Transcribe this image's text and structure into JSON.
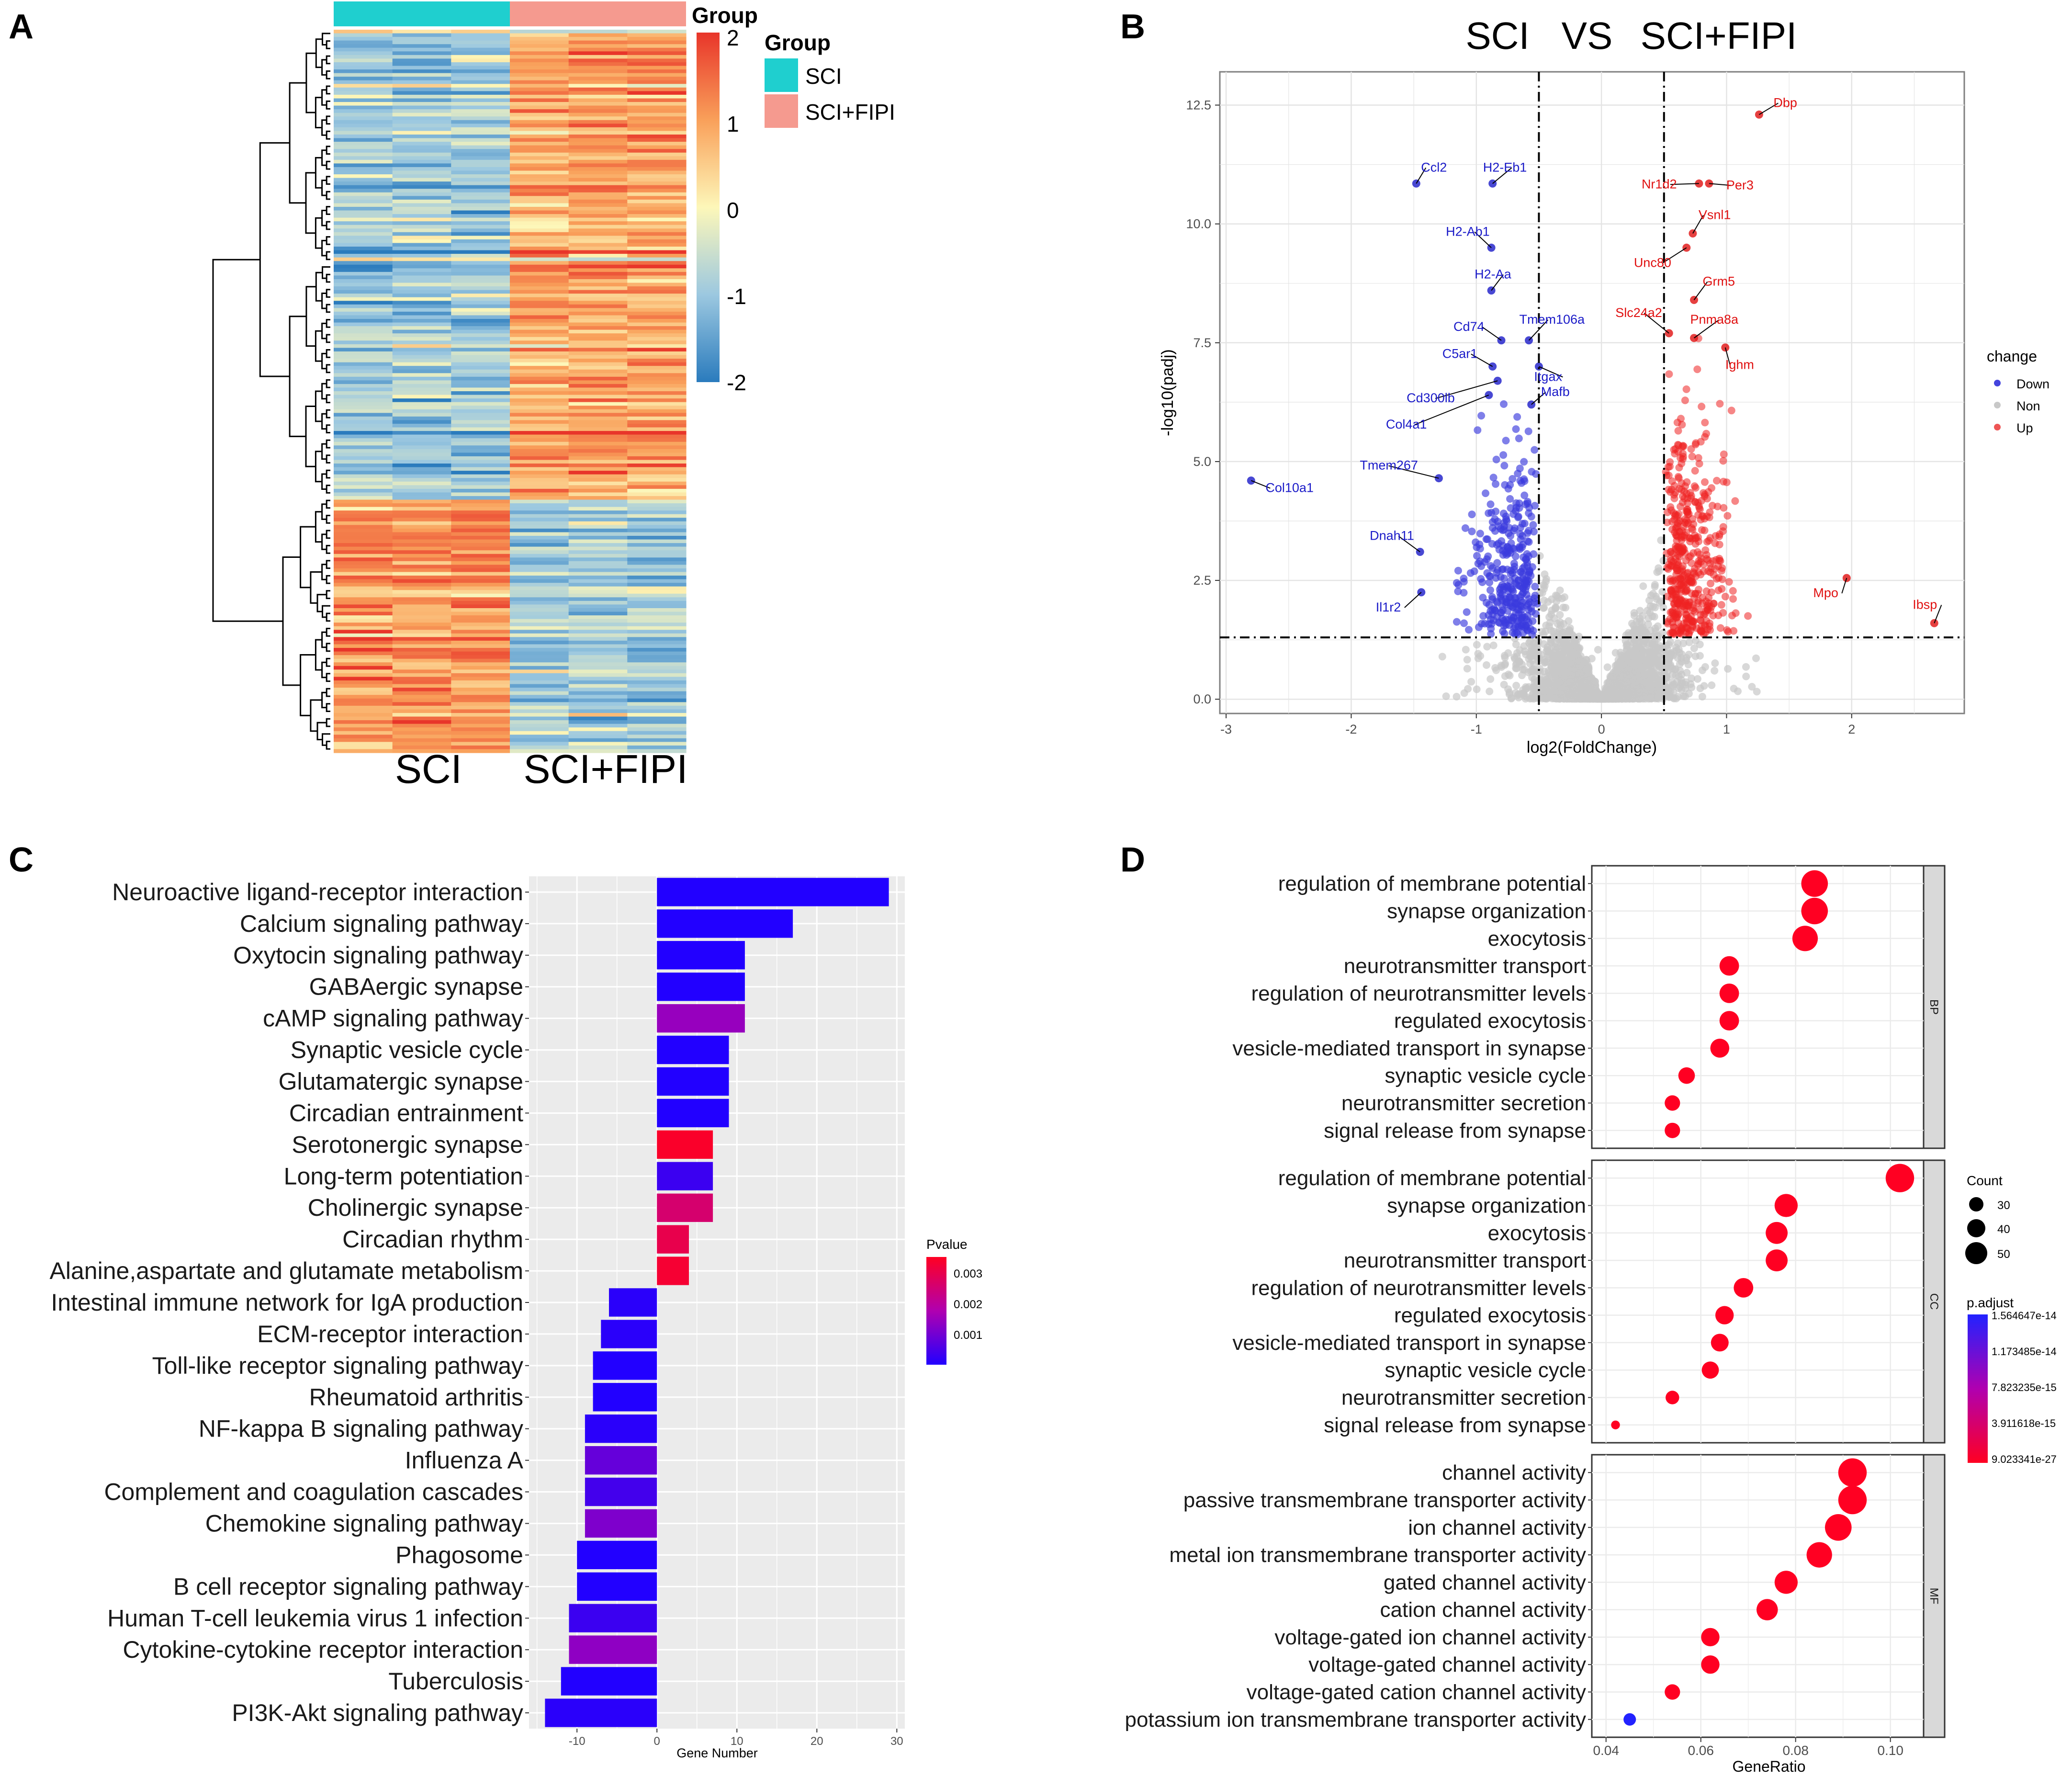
{
  "panels": {
    "A": {
      "letter": "A",
      "legend_title": "Group",
      "legend_items": [
        {
          "label": "SCI",
          "color": "#1fcfcf"
        },
        {
          "label": "SCI+FIPI",
          "color": "#f59a8f"
        }
      ],
      "colorbar_ticks": [
        "2",
        "1",
        "0",
        "-1",
        "-2"
      ],
      "group_header_label": "Group",
      "column_labels": [
        "SCI",
        "SCI+FIPI"
      ],
      "colors": {
        "high": "#e8352a",
        "mid": "#fdf7b9",
        "low": "#2a7bbd"
      }
    },
    "B": {
      "letter": "B",
      "title_left": "SCI",
      "title_mid": "VS",
      "title_right": "SCI+FIPI",
      "xlabel": "log2(FoldChange)",
      "ylabel": "-log10(padj)",
      "xticks": [
        "-3",
        "-2",
        "-1",
        "0",
        "1",
        "2"
      ],
      "yticks": [
        "0.0",
        "2.5",
        "5.0",
        "7.5",
        "10.0",
        "12.5"
      ],
      "legend_title": "change",
      "legend_items": [
        {
          "label": "Down",
          "color": "#4444dd"
        },
        {
          "label": "Non",
          "color": "#c8c8c8"
        },
        {
          "label": "Up",
          "color": "#ee3333"
        }
      ]
    },
    "C": {
      "letter": "C",
      "xlabel": "Gene Number",
      "xticks": [
        "-10",
        "0",
        "10",
        "20",
        "30"
      ],
      "legend_title": "Pvalue",
      "legend_ticks": [
        "0.003",
        "0.002",
        "0.001"
      ]
    },
    "D": {
      "letter": "D",
      "xlabel": "GeneRatio",
      "xticks": [
        "0.04",
        "0.06",
        "0.08",
        "0.10"
      ],
      "facets": [
        "BP",
        "CC",
        "MF"
      ],
      "count_title": "Count",
      "count_items": [
        "30",
        "40",
        "50"
      ],
      "padj_title": "p.adjust",
      "padj_ticks": [
        "1.564647e-14",
        "1.173485e-14",
        "7.823235e-15",
        "3.911618e-15",
        "9.023341e-27"
      ]
    }
  },
  "chart_data": [
    {
      "type": "heatmap",
      "panel": "A",
      "columns": [
        "SCI",
        "SCI",
        "SCI",
        "SCI+FIPI",
        "SCI+FIPI",
        "SCI+FIPI"
      ],
      "row_blocks": [
        {
          "rows": 130,
          "sci_level": -0.9,
          "fipi_level": 0.9
        },
        {
          "rows": 70,
          "sci_level": 1.1,
          "fipi_level": -0.9
        }
      ],
      "range": [
        -2,
        2
      ]
    },
    {
      "type": "scatter",
      "panel": "B",
      "title": "SCI VS SCI+FIPI",
      "xlabel": "log2(FoldChange)",
      "ylabel": "-log10(padj)",
      "xlim": [
        -3.05,
        2.9
      ],
      "ylim": [
        -0.3,
        13.2
      ],
      "thresholds": {
        "x": [
          -0.5,
          0.5
        ],
        "y": 1.3
      },
      "labeled_points": [
        {
          "gene": "Dbp",
          "x": 1.26,
          "y": 12.3,
          "change": "Up"
        },
        {
          "gene": "Nr1d2",
          "x": 0.78,
          "y": 10.85,
          "change": "Up"
        },
        {
          "gene": "Per3",
          "x": 0.86,
          "y": 10.85,
          "change": "Up"
        },
        {
          "gene": "Vsnl1",
          "x": 0.73,
          "y": 9.8,
          "change": "Up"
        },
        {
          "gene": "Unc80",
          "x": 0.68,
          "y": 9.5,
          "change": "Up"
        },
        {
          "gene": "Grm5",
          "x": 0.74,
          "y": 8.4,
          "change": "Up"
        },
        {
          "gene": "Slc24a2",
          "x": 0.54,
          "y": 7.7,
          "change": "Up"
        },
        {
          "gene": "Pnma8a",
          "x": 0.74,
          "y": 7.6,
          "change": "Up"
        },
        {
          "gene": "Ighm",
          "x": 0.99,
          "y": 7.4,
          "change": "Up"
        },
        {
          "gene": "Mpo",
          "x": 1.96,
          "y": 2.55,
          "change": "Up"
        },
        {
          "gene": "Ibsp",
          "x": 2.66,
          "y": 1.6,
          "change": "Up"
        },
        {
          "gene": "Ccl2",
          "x": -1.48,
          "y": 10.85,
          "change": "Down"
        },
        {
          "gene": "H2-Eb1",
          "x": -0.87,
          "y": 10.85,
          "change": "Down"
        },
        {
          "gene": "H2-Ab1",
          "x": -0.88,
          "y": 9.5,
          "change": "Down"
        },
        {
          "gene": "H2-Aa",
          "x": -0.88,
          "y": 8.6,
          "change": "Down"
        },
        {
          "gene": "Cd74",
          "x": -0.8,
          "y": 7.55,
          "change": "Down"
        },
        {
          "gene": "Tmem106a",
          "x": -0.58,
          "y": 7.55,
          "change": "Down"
        },
        {
          "gene": "C5ar1",
          "x": -0.87,
          "y": 7.0,
          "change": "Down"
        },
        {
          "gene": "Itgax",
          "x": -0.5,
          "y": 7.0,
          "change": "Down"
        },
        {
          "gene": "Cd300lb",
          "x": -0.83,
          "y": 6.7,
          "change": "Down"
        },
        {
          "gene": "Mafb",
          "x": -0.56,
          "y": 6.2,
          "change": "Down"
        },
        {
          "gene": "Col4a1",
          "x": -0.9,
          "y": 6.4,
          "change": "Down"
        },
        {
          "gene": "Tmem267",
          "x": -1.3,
          "y": 4.65,
          "change": "Down"
        },
        {
          "gene": "Col10a1",
          "x": -2.8,
          "y": 4.6,
          "change": "Down"
        },
        {
          "gene": "Dnah11",
          "x": -1.45,
          "y": 3.1,
          "change": "Down"
        },
        {
          "gene": "Il1r2",
          "x": -1.44,
          "y": 2.25,
          "change": "Down"
        }
      ]
    },
    {
      "type": "bar",
      "panel": "C",
      "orientation": "horizontal",
      "xlabel": "Gene Number",
      "xlim": [
        -16,
        31
      ],
      "categories": [
        "Neuroactive ligand-receptor interaction",
        "Calcium signaling pathway",
        "Oxytocin signaling pathway",
        "GABAergic synapse",
        "cAMP signaling pathway",
        "Synaptic vesicle cycle",
        "Glutamatergic synapse",
        "Circadian entrainment",
        "Serotonergic synapse",
        "Long-term potentiation",
        "Cholinergic synapse",
        "Circadian rhythm",
        "Alanine,aspartate and glutamate metabolism",
        "Intestinal immune network for IgA production",
        "ECM-receptor interaction",
        "Toll-like receptor signaling pathway",
        "Rheumatoid arthritis",
        "NF-kappa B signaling pathway",
        "Influenza A",
        "Complement and coagulation cascades",
        "Chemokine signaling pathway",
        "Phagosome",
        "B cell receptor signaling pathway",
        "Human T-cell leukemia virus 1 infection",
        "Cytokine-cytokine receptor interaction",
        "Tuberculosis",
        "PI3K-Akt signaling pathway"
      ],
      "values": [
        29,
        17,
        11,
        11,
        11,
        9,
        9,
        9,
        7,
        7,
        7,
        4,
        4,
        -6,
        -7,
        -8,
        -8,
        -9,
        -9,
        -9,
        -9,
        -10,
        -10,
        -11,
        -11,
        -12,
        -14
      ],
      "pvalues": [
        0.0001,
        0.0001,
        0.0001,
        0.0001,
        0.0015,
        0.0001,
        0.0001,
        0.0001,
        0.0034,
        0.0004,
        0.0026,
        0.003,
        0.0033,
        0.0002,
        0.0002,
        0.0001,
        0.0001,
        0.0002,
        0.0009,
        0.0005,
        0.0012,
        0.0001,
        0.0001,
        0.0004,
        0.0014,
        0.0001,
        0.0002
      ],
      "legend_title": "Pvalue"
    },
    {
      "type": "scatter",
      "panel": "D",
      "subtype": "dotplot",
      "xlabel": "GeneRatio",
      "xlim": [
        0.037,
        0.107
      ],
      "facets": [
        {
          "name": "BP",
          "terms": [
            "regulation of membrane potential",
            "synapse organization",
            "exocytosis",
            "neurotransmitter transport",
            "regulation of neurotransmitter levels",
            "regulated exocytosis",
            "vesicle-mediated transport in synapse",
            "synaptic vesicle cycle",
            "neurotransmitter secretion",
            "signal release from synapse"
          ],
          "gene_ratio": [
            0.084,
            0.084,
            0.082,
            0.066,
            0.066,
            0.066,
            0.064,
            0.057,
            0.054,
            0.054
          ],
          "count": [
            52,
            52,
            50,
            40,
            40,
            40,
            39,
            35,
            33,
            33
          ],
          "p_adjust": [
            1e-26,
            1e-26,
            1e-26,
            1e-26,
            1e-26,
            1e-26,
            1e-26,
            1e-26,
            1e-26,
            1e-26
          ]
        },
        {
          "name": "CC",
          "terms": [
            "regulation of membrane potential",
            "synapse organization",
            "exocytosis",
            "neurotransmitter transport",
            "regulation of neurotransmitter levels",
            "regulated exocytosis",
            "vesicle-mediated transport in synapse",
            "synaptic vesicle cycle",
            "neurotransmitter secretion",
            "signal release from synapse"
          ],
          "gene_ratio": [
            0.102,
            0.078,
            0.076,
            0.076,
            0.069,
            0.065,
            0.064,
            0.062,
            0.054,
            0.042
          ],
          "count": [
            55,
            46,
            44,
            44,
            40,
            38,
            37,
            36,
            30,
            22
          ],
          "p_adjust": [
            1e-26,
            1e-26,
            1e-26,
            1e-26,
            1e-26,
            1e-26,
            1e-26,
            1e-26,
            1e-26,
            1e-26
          ]
        },
        {
          "name": "MF",
          "terms": [
            "channel activity",
            "passive transmembrane transporter activity",
            "ion channel activity",
            "metal ion transmembrane transporter activity",
            "gated channel activity",
            "cation channel activity",
            "voltage-gated ion channel activity",
            "voltage-gated channel activity",
            "voltage-gated cation channel activity",
            "potassium ion transmembrane transporter activity"
          ],
          "gene_ratio": [
            0.092,
            0.092,
            0.089,
            0.085,
            0.078,
            0.074,
            0.062,
            0.062,
            0.054,
            0.045
          ],
          "count": [
            55,
            55,
            52,
            50,
            46,
            43,
            38,
            38,
            33,
            28
          ],
          "p_adjust": [
            1e-26,
            1e-26,
            1e-26,
            1e-26,
            1e-26,
            1e-26,
            1e-26,
            1e-26,
            1e-26,
            1.56e-14
          ]
        }
      ]
    }
  ]
}
